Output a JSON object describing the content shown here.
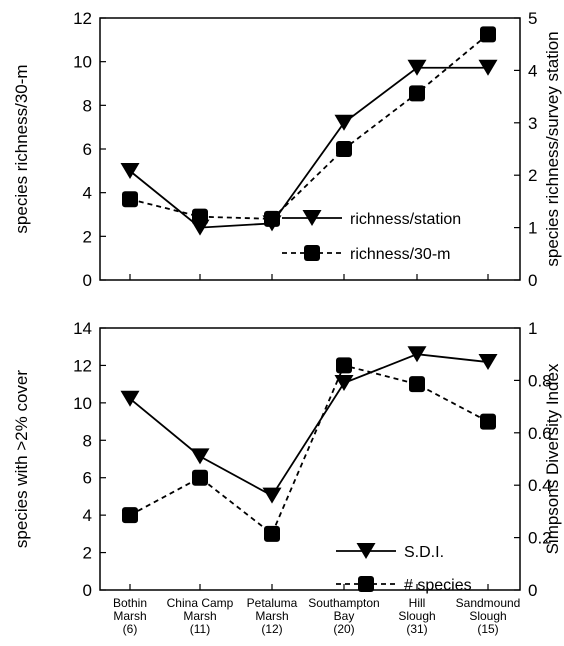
{
  "chart_data": [
    {
      "type": "line",
      "categories": [
        "Bothin Marsh",
        "China Camp Marsh",
        "Petaluma Marsh",
        "Southampton Bay",
        "Hill Slough",
        "Sandmound Slough"
      ],
      "left_axis": {
        "label": "species richness/30-m",
        "range": [
          0,
          12
        ],
        "ticks": [
          "0",
          "2",
          "4",
          "6",
          "8",
          "10",
          "12"
        ]
      },
      "right_axis": {
        "label": "species richness/survey station",
        "range": [
          0,
          5
        ],
        "ticks": [
          "0",
          "1",
          "2",
          "3",
          "4",
          "5"
        ]
      },
      "series": [
        {
          "name": "richness/station",
          "axis": "right",
          "line": "solid",
          "marker": "triangle-down",
          "values": [
            2.08,
            1.0,
            1.08,
            3.0,
            4.05,
            4.05
          ]
        },
        {
          "name": "richness/30-m",
          "axis": "left",
          "line": "dashed",
          "marker": "square",
          "values": [
            3.7,
            2.9,
            2.8,
            6.0,
            8.55,
            11.25
          ]
        }
      ],
      "legend_position": "lower-right"
    },
    {
      "type": "line",
      "categories": [
        "Bothin Marsh",
        "China Camp Marsh",
        "Petaluma Marsh",
        "Southampton Bay",
        "Hill Slough",
        "Sandmound Slough"
      ],
      "left_axis": {
        "label": "species with >2% cover",
        "range": [
          0,
          14
        ],
        "ticks": [
          "0",
          "2",
          "4",
          "6",
          "8",
          "10",
          "12",
          "14"
        ]
      },
      "right_axis": {
        "label": "Simpsons Diversity Index",
        "range": [
          0,
          1
        ],
        "ticks": [
          "0",
          "0.2",
          "0.4",
          "0.6",
          "0.8",
          "1"
        ]
      },
      "series": [
        {
          "name": "S.D.I.",
          "axis": "right",
          "line": "solid",
          "marker": "triangle-down",
          "values": [
            0.73,
            0.51,
            0.36,
            0.79,
            0.9,
            0.87
          ]
        },
        {
          "name": "# species",
          "axis": "left",
          "line": "dashed",
          "marker": "square",
          "values": [
            4,
            6,
            3,
            12,
            11,
            9
          ]
        }
      ],
      "legend_position": "lower-right"
    }
  ],
  "x_tick_labels": [
    {
      "line1": "Bothin",
      "line2": "Marsh",
      "count": "(6)"
    },
    {
      "line1": "China Camp",
      "line2": "Marsh",
      "count": "(11)"
    },
    {
      "line1": "Petaluma",
      "line2": "Marsh",
      "count": "(12)"
    },
    {
      "line1": "Southampton",
      "line2": "Bay",
      "count": "(20)"
    },
    {
      "line1": "Hill",
      "line2": "Slough",
      "count": "(31)"
    },
    {
      "line1": "Sandmound",
      "line2": "Slough",
      "count": "(15)"
    }
  ]
}
